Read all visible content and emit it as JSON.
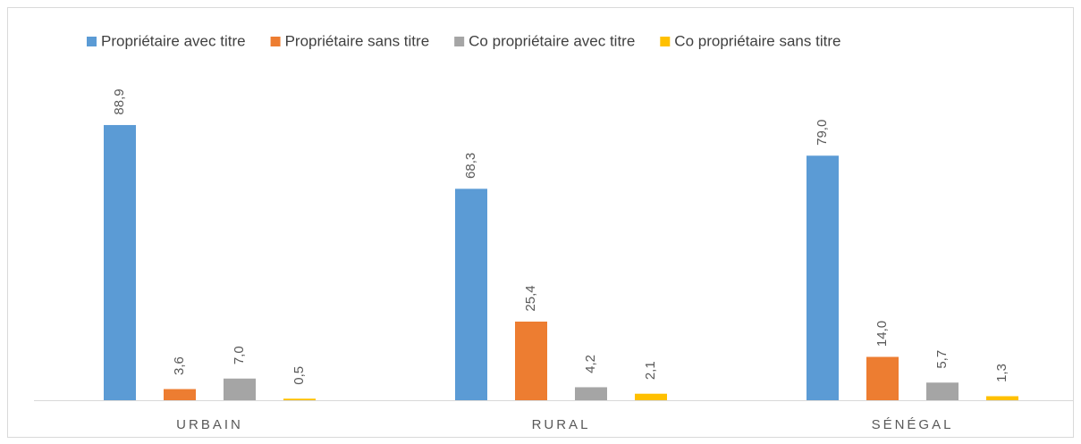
{
  "chart_data": {
    "type": "bar",
    "categories": [
      "URBAIN",
      "RURAL",
      "SÉNÉGAL"
    ],
    "series": [
      {
        "name": "Propriétaire avec titre",
        "color": "#5b9bd5",
        "values": [
          88.9,
          68.3,
          79.0
        ],
        "value_labels": [
          "88,9",
          "68,3",
          "79,0"
        ]
      },
      {
        "name": "Propriétaire sans titre",
        "color": "#ed7d31",
        "values": [
          3.6,
          25.4,
          14.0
        ],
        "value_labels": [
          "3,6",
          "25,4",
          "14,0"
        ]
      },
      {
        "name": "Co propriétaire avec titre",
        "color": "#a5a5a5",
        "values": [
          7.0,
          4.2,
          5.7
        ],
        "value_labels": [
          "7,0",
          "4,2",
          "5,7"
        ]
      },
      {
        "name": "Co propriétaire sans titre",
        "color": "#ffc000",
        "values": [
          0.5,
          2.1,
          1.3
        ],
        "value_labels": [
          "0,5",
          "2,1",
          "1,3"
        ]
      }
    ],
    "ylim": [
      0,
      100
    ],
    "legend": "top"
  }
}
